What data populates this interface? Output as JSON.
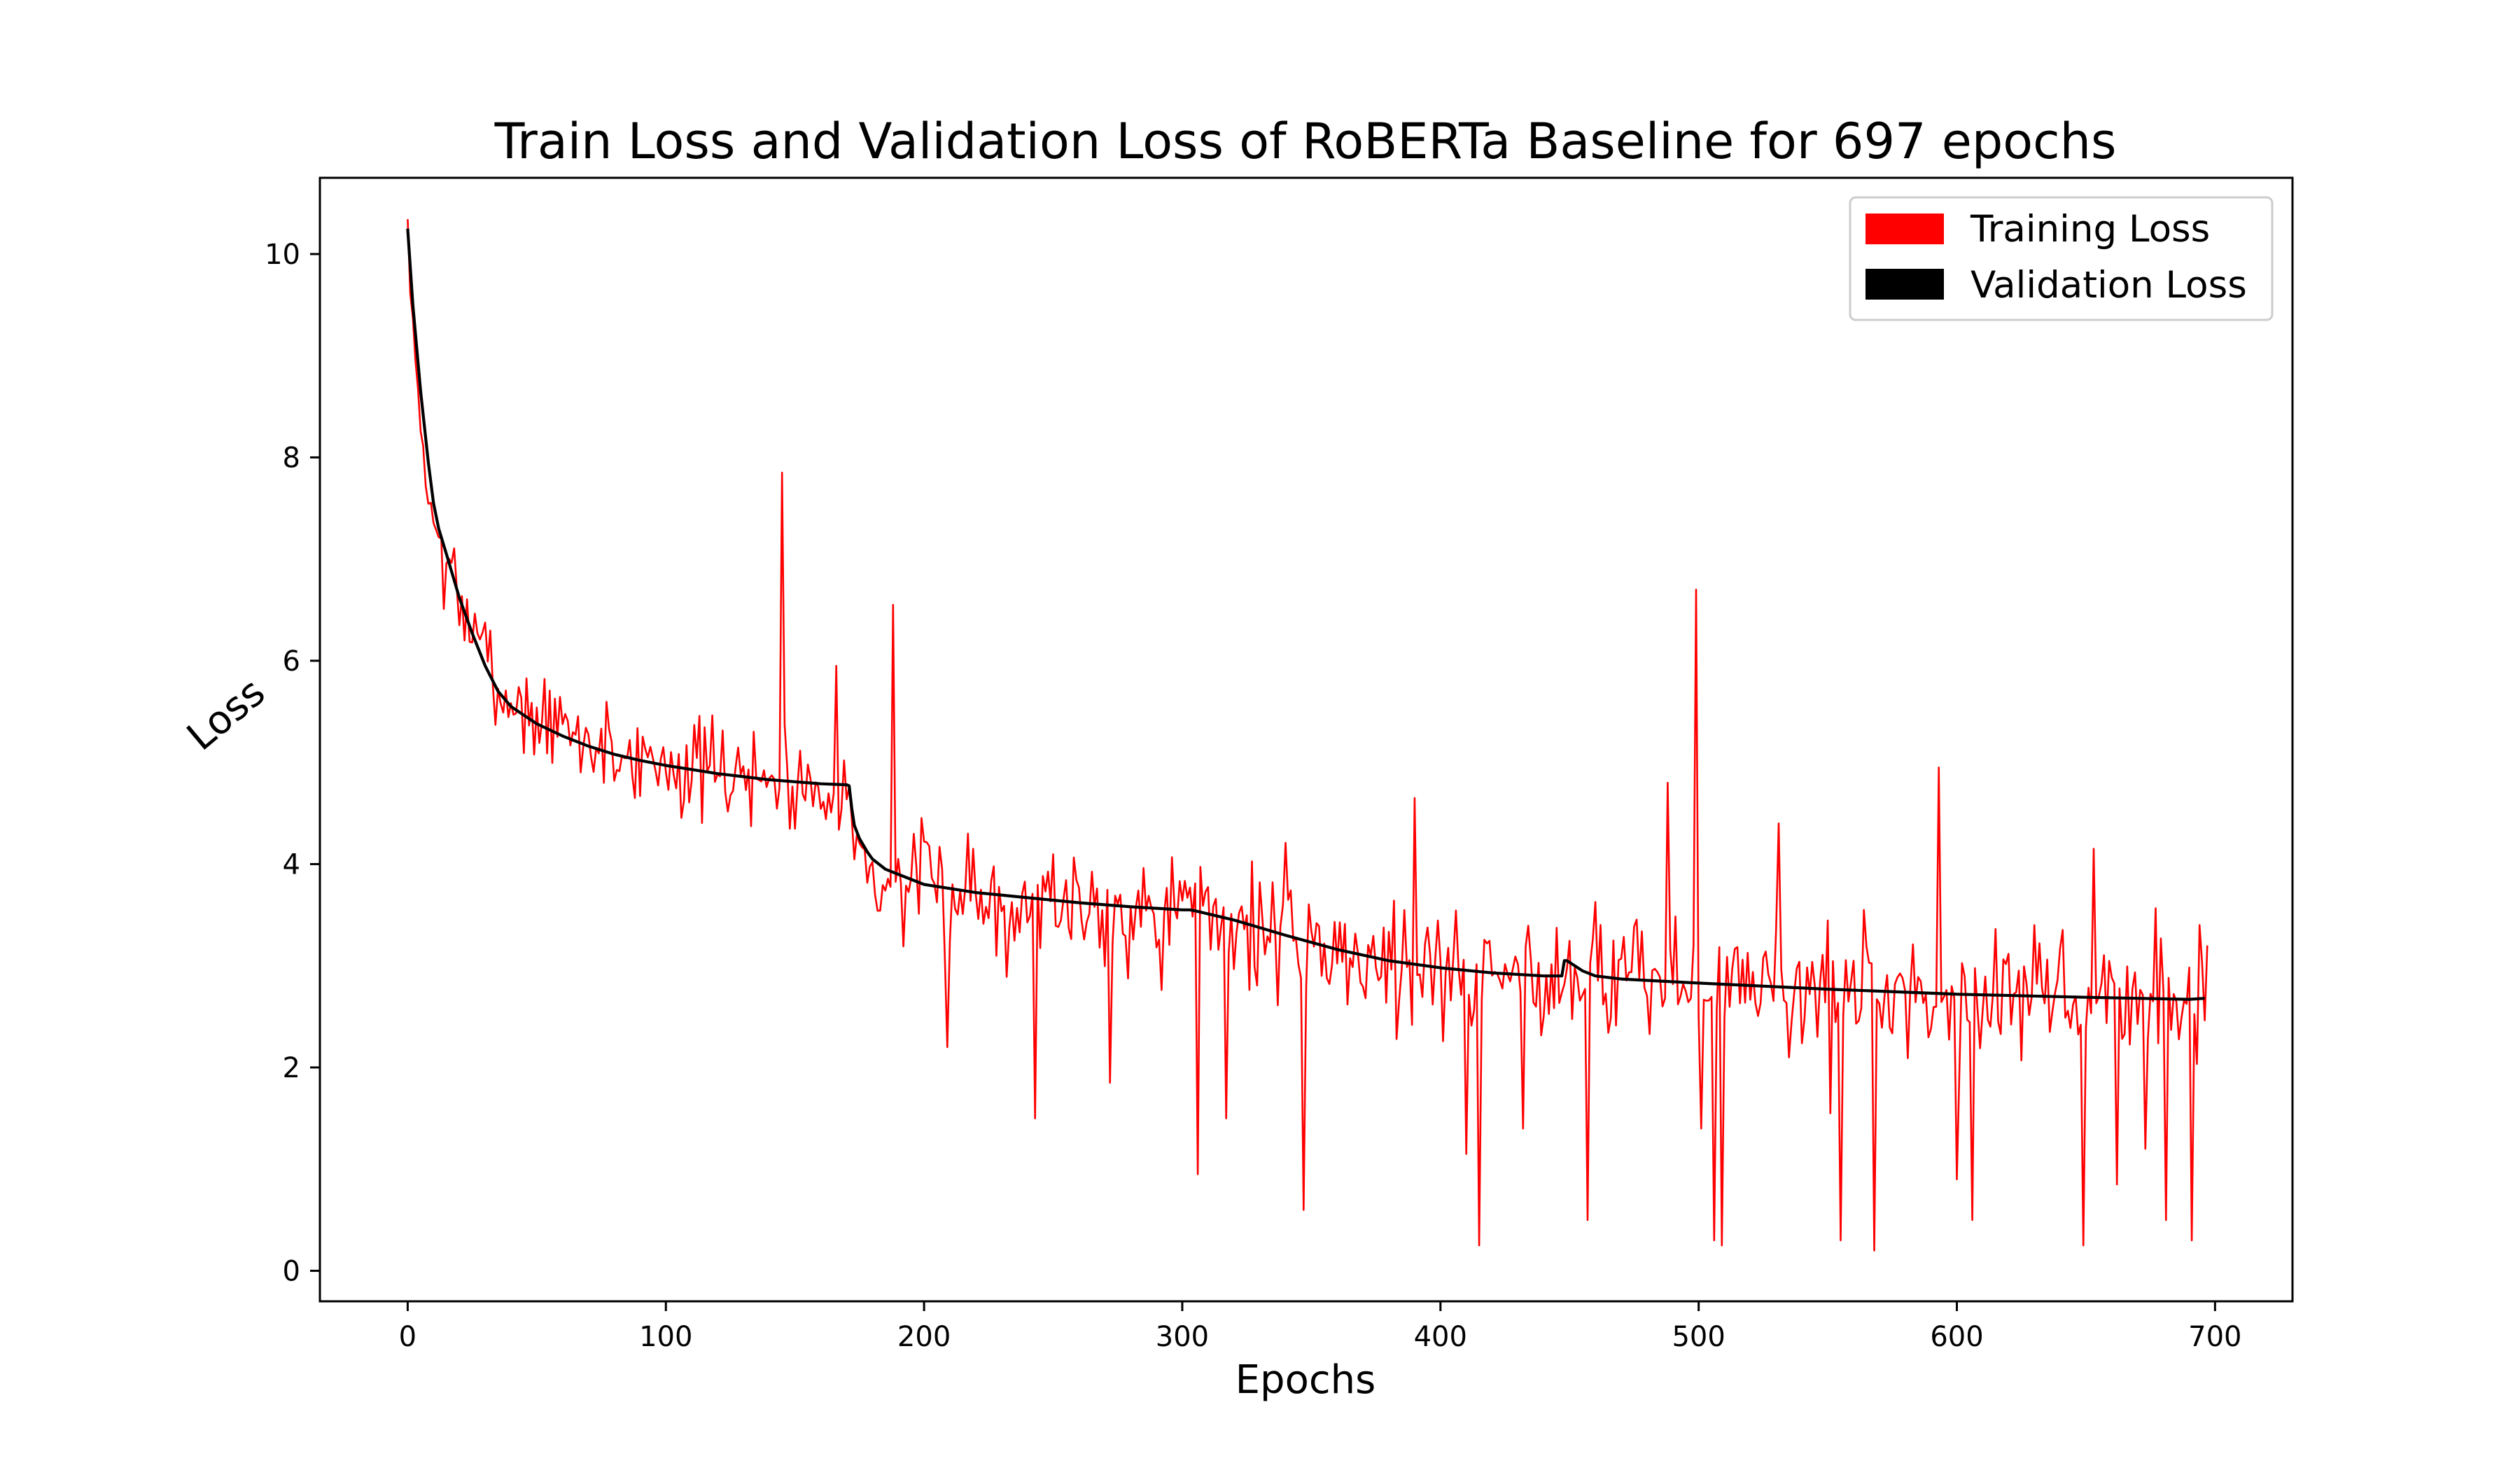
{
  "chart_data": {
    "type": "line",
    "title": "Train Loss and Validation Loss of RoBERTa Baseline for 697 epochs",
    "xlabel": "Epochs",
    "ylabel": "Loss",
    "xlim": [
      -34,
      730
    ],
    "ylim": [
      -0.3,
      10.75
    ],
    "xticks": [
      0,
      100,
      200,
      300,
      400,
      500,
      600,
      700
    ],
    "yticks": [
      0,
      2,
      4,
      6,
      8,
      10
    ],
    "grid": false,
    "legend_position": "top-right",
    "series": [
      {
        "name": "Training Loss",
        "color": "#ff0000",
        "style": "noisy",
        "noise_seed": 7,
        "noise_std": 0.55,
        "x": [
          0,
          1,
          2,
          3,
          5,
          8,
          10,
          12,
          15,
          20,
          25,
          30,
          35,
          40,
          50,
          60,
          70,
          80,
          90,
          100,
          110,
          120,
          130,
          140,
          150,
          160,
          170,
          171,
          173,
          175,
          180,
          190,
          200,
          220,
          240,
          260,
          280,
          300,
          305,
          320,
          340,
          360,
          380,
          400,
          420,
          440,
          447,
          449,
          455,
          470,
          500,
          550,
          600,
          650,
          690,
          696
        ],
        "y": [
          10.25,
          9.7,
          9.3,
          8.9,
          8.3,
          7.6,
          7.4,
          7.2,
          6.9,
          6.6,
          6.3,
          6.0,
          5.75,
          5.6,
          5.45,
          5.3,
          5.2,
          5.1,
          5.05,
          5.0,
          4.95,
          4.9,
          4.87,
          4.83,
          4.8,
          4.79,
          4.78,
          4.7,
          4.2,
          4.05,
          3.9,
          3.8,
          3.75,
          3.7,
          3.65,
          3.62,
          3.58,
          3.55,
          3.55,
          3.45,
          3.3,
          3.15,
          3.05,
          2.98,
          2.93,
          2.9,
          2.9,
          3.05,
          3.0,
          2.9,
          2.83,
          2.77,
          2.73,
          2.7,
          2.68,
          2.68
        ],
        "spikes": [
          [
            145,
            7.85
          ],
          [
            166,
            5.95
          ],
          [
            188,
            6.55
          ],
          [
            209,
            2.2
          ],
          [
            217,
            4.3
          ],
          [
            243,
            1.5
          ],
          [
            272,
            1.85
          ],
          [
            306,
            0.95
          ],
          [
            317,
            1.5
          ],
          [
            347,
            0.6
          ],
          [
            390,
            4.65
          ],
          [
            410,
            1.15
          ],
          [
            415,
            0.25
          ],
          [
            432,
            1.4
          ],
          [
            457,
            0.5
          ],
          [
            488,
            4.8
          ],
          [
            499,
            6.7
          ],
          [
            501,
            1.4
          ],
          [
            506,
            0.3
          ],
          [
            509,
            0.25
          ],
          [
            531,
            4.4
          ],
          [
            551,
            1.55
          ],
          [
            555,
            0.3
          ],
          [
            568,
            0.2
          ],
          [
            593,
            4.95
          ],
          [
            600,
            0.9
          ],
          [
            606,
            0.5
          ],
          [
            649,
            0.25
          ],
          [
            653,
            4.15
          ],
          [
            662,
            0.85
          ],
          [
            673,
            1.2
          ],
          [
            681,
            0.5
          ],
          [
            691,
            0.3
          ],
          [
            694,
            3.4
          ],
          [
            697,
            3.2
          ]
        ]
      },
      {
        "name": "Validation Loss",
        "color": "#000000",
        "style": "smooth",
        "x": [
          0,
          2,
          5,
          8,
          10,
          12,
          15,
          20,
          25,
          30,
          35,
          40,
          50,
          60,
          70,
          80,
          90,
          100,
          110,
          120,
          130,
          140,
          150,
          160,
          170,
          171,
          172,
          173,
          175,
          178,
          180,
          185,
          190,
          200,
          220,
          240,
          260,
          280,
          300,
          303,
          305,
          320,
          340,
          360,
          380,
          400,
          420,
          440,
          447,
          448,
          449,
          455,
          460,
          470,
          500,
          550,
          600,
          650,
          690,
          696
        ],
        "y": [
          10.25,
          9.5,
          8.65,
          7.95,
          7.55,
          7.3,
          7.05,
          6.62,
          6.27,
          5.95,
          5.7,
          5.55,
          5.38,
          5.26,
          5.16,
          5.08,
          5.02,
          4.97,
          4.93,
          4.89,
          4.86,
          4.83,
          4.81,
          4.79,
          4.78,
          4.77,
          4.55,
          4.38,
          4.25,
          4.12,
          4.05,
          3.95,
          3.9,
          3.8,
          3.72,
          3.67,
          3.62,
          3.58,
          3.55,
          3.55,
          3.54,
          3.45,
          3.3,
          3.16,
          3.05,
          2.98,
          2.93,
          2.9,
          2.9,
          3.05,
          3.05,
          2.95,
          2.9,
          2.87,
          2.83,
          2.77,
          2.72,
          2.69,
          2.67,
          2.68
        ]
      }
    ]
  }
}
